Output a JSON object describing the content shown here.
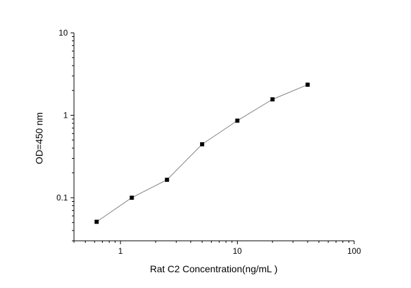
{
  "chart_data": {
    "type": "line",
    "title": "",
    "xlabel": "Rat C2 Concentration(ng/mL )",
    "ylabel": "OD=450 nm",
    "x_scale": "log",
    "y_scale": "log",
    "xlim": [
      0.4,
      100
    ],
    "ylim": [
      0.03,
      10
    ],
    "x_ticks": [
      1,
      10,
      100
    ],
    "x_tick_labels": [
      "1",
      "10",
      "100"
    ],
    "y_ticks": [
      0.1,
      1,
      10
    ],
    "y_tick_labels": [
      "0.1",
      "1",
      "10"
    ],
    "grid": false,
    "legend": "none",
    "series": [
      {
        "x": [
          0.625,
          1.25,
          2.5,
          5,
          10,
          20,
          40
        ],
        "y": [
          0.051,
          0.1,
          0.165,
          0.445,
          0.86,
          1.56,
          2.35
        ],
        "marker": "square",
        "marker_color": "#000000",
        "line_color": "#808080"
      }
    ]
  }
}
